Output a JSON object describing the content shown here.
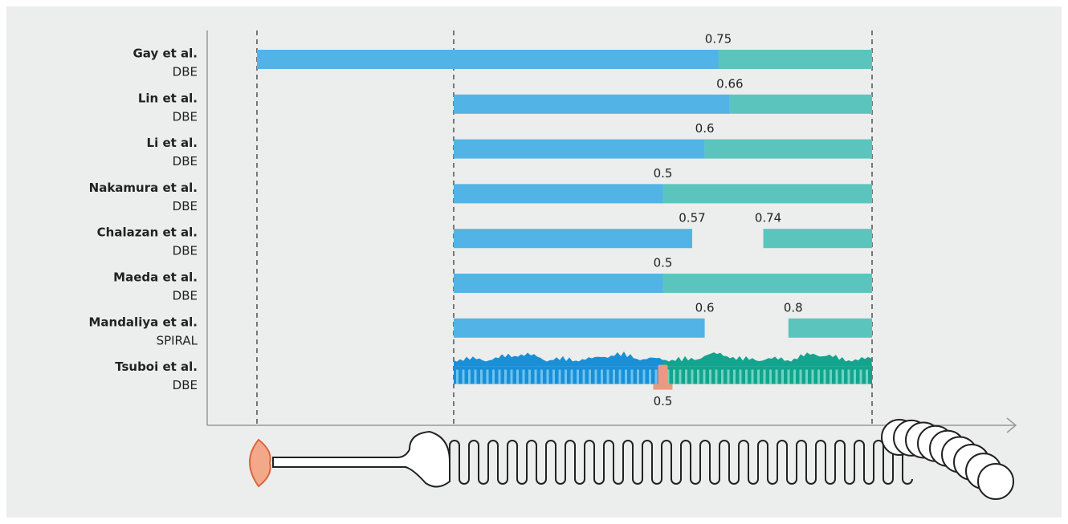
{
  "chart_data": {
    "type": "range-bar",
    "rows": [
      {
        "name": "Gay et al.",
        "method": "DBE",
        "start": "mouth",
        "values": [
          0.75
        ]
      },
      {
        "name": "Lin et al.",
        "method": "DBE",
        "start": "pylorus",
        "values": [
          0.66
        ]
      },
      {
        "name": "Li et al.",
        "method": "DBE",
        "start": "pylorus",
        "values": [
          0.6
        ]
      },
      {
        "name": "Nakamura et al.",
        "method": "DBE",
        "start": "pylorus",
        "values": [
          0.5
        ]
      },
      {
        "name": "Chalazan et al.",
        "method": "DBE",
        "start": "pylorus",
        "values": [
          0.57,
          0.74
        ]
      },
      {
        "name": "Maeda et al.",
        "method": "DBE",
        "start": "pylorus",
        "values": [
          0.5
        ]
      },
      {
        "name": "Mandaliya et al.",
        "method": "SPIRAL",
        "start": "pylorus",
        "values": [
          0.6,
          0.8
        ]
      },
      {
        "name": "Tsuboi et al.",
        "method": "DBE",
        "start": "pylorus",
        "values": [
          0.5
        ],
        "style": "villi"
      }
    ],
    "colors": {
      "oral": "#52b4e6",
      "anal": "#5bc5bd",
      "oral_dark": "#1b8fd6",
      "anal_dark": "#13a48e",
      "marker": "#ec9a7f"
    }
  }
}
